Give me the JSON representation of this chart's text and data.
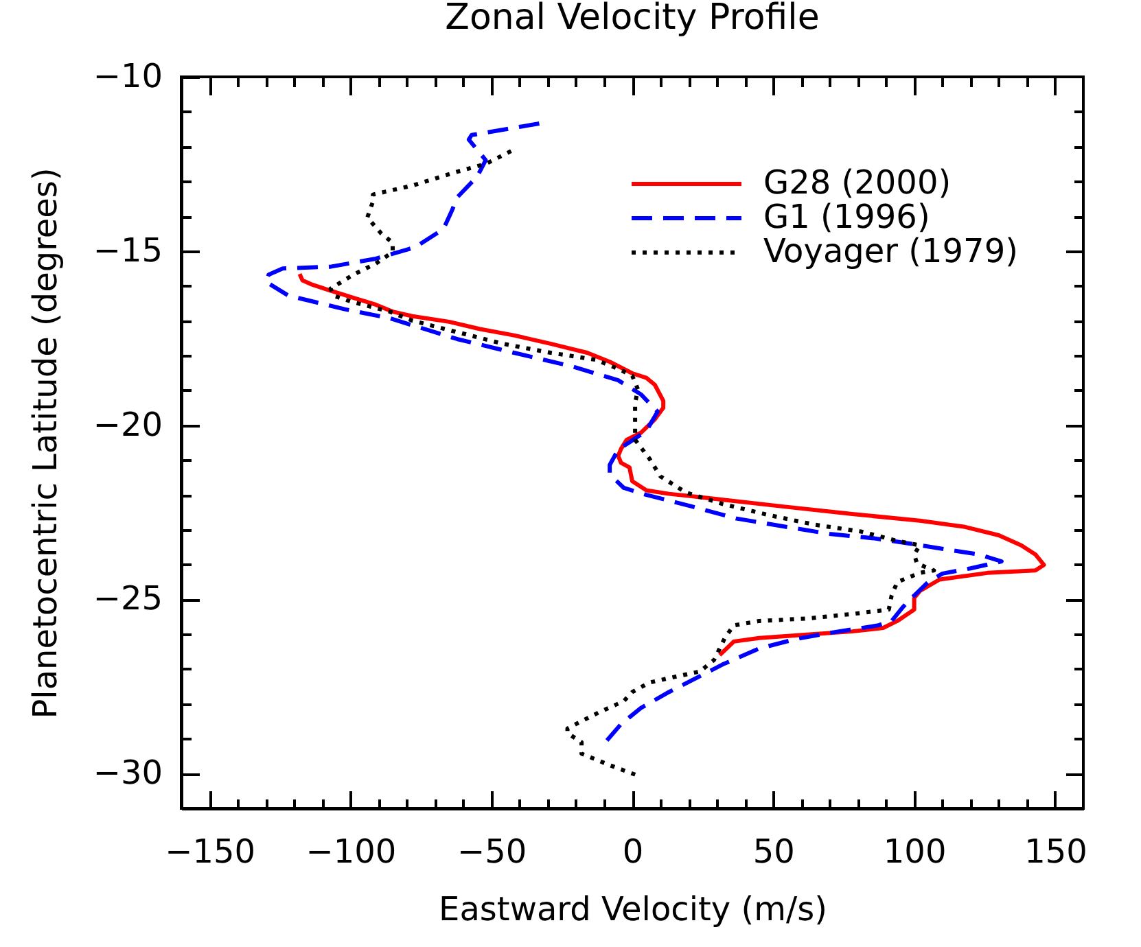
{
  "chart_data": {
    "type": "line",
    "title": "Zonal Velocity Profile",
    "xlabel": "Eastward Velocity (m/s)",
    "ylabel": "Planetocentric Latitude (degrees)",
    "xlim": [
      -160,
      160
    ],
    "xticks": [
      -150,
      {
        "value": -140,
        "label": null
      },
      {
        "value": -130,
        "label": null
      },
      {
        "value": -120,
        "label": null
      },
      {
        "value": -110,
        "label": null
      },
      -100,
      {
        "value": -90,
        "label": null
      },
      {
        "value": -80,
        "label": null
      },
      {
        "value": -70,
        "label": null
      },
      {
        "value": -60,
        "label": null
      },
      -50,
      {
        "value": -40,
        "label": null
      },
      {
        "value": -30,
        "label": null
      },
      {
        "value": -20,
        "label": null
      },
      {
        "value": -10,
        "label": null
      },
      0,
      {
        "value": 10,
        "label": null
      },
      {
        "value": 20,
        "label": null
      },
      {
        "value": 30,
        "label": null
      },
      {
        "value": 40,
        "label": null
      },
      50,
      {
        "value": 60,
        "label": null
      },
      {
        "value": 70,
        "label": null
      },
      {
        "value": 80,
        "label": null
      },
      {
        "value": 90,
        "label": null
      },
      100,
      {
        "value": 110,
        "label": null
      },
      {
        "value": 120,
        "label": null
      },
      {
        "value": 130,
        "label": null
      },
      {
        "value": 140,
        "label": null
      },
      150
    ],
    "ylim": [
      -31,
      -10
    ],
    "yticks": [
      -30,
      {
        "value": -29,
        "label": null
      },
      {
        "value": -28,
        "label": null
      },
      {
        "value": -27,
        "label": null
      },
      {
        "value": -26,
        "label": null
      },
      -25,
      {
        "value": -24,
        "label": null
      },
      {
        "value": -23,
        "label": null
      },
      {
        "value": -22,
        "label": null
      },
      {
        "value": -21,
        "label": null
      },
      -20,
      {
        "value": -19,
        "label": null
      },
      {
        "value": -18,
        "label": null
      },
      {
        "value": -17,
        "label": null
      },
      {
        "value": -16,
        "label": null
      },
      -15,
      {
        "value": -14,
        "label": null
      },
      {
        "value": -13,
        "label": null
      },
      {
        "value": -12,
        "label": null
      },
      {
        "value": -11,
        "label": null
      },
      -10
    ],
    "legend": "top right",
    "series": [
      {
        "name": "G28 (2000)",
        "color": "#ff0000",
        "line_style": "solid",
        "x": [
          -118,
          -117,
          -114,
          -107,
          -99,
          -91,
          -85,
          -78,
          -65,
          -54,
          -42,
          -29,
          -16,
          -8,
          0,
          5,
          8,
          11,
          11,
          8,
          3,
          -2,
          -4,
          -5,
          -4,
          -1,
          0,
          5,
          13,
          29,
          53,
          78,
          102,
          118,
          130,
          138,
          143,
          146,
          143,
          126,
          109,
          102,
          100,
          100,
          94,
          89,
          78,
          62,
          45,
          36,
          34,
          31
        ],
        "values": [
          -15.66,
          -15.84,
          -15.95,
          -16.14,
          -16.34,
          -16.54,
          -16.74,
          -16.87,
          -17.03,
          -17.24,
          -17.42,
          -17.66,
          -17.92,
          -18.18,
          -18.51,
          -18.64,
          -18.84,
          -19.3,
          -19.5,
          -19.83,
          -20.22,
          -20.42,
          -20.68,
          -20.88,
          -21.08,
          -21.21,
          -21.61,
          -21.87,
          -21.97,
          -22.11,
          -22.33,
          -22.55,
          -22.74,
          -22.92,
          -23.16,
          -23.45,
          -23.71,
          -24.01,
          -24.17,
          -24.24,
          -24.43,
          -24.76,
          -24.96,
          -25.29,
          -25.62,
          -25.82,
          -25.92,
          -26.01,
          -26.11,
          -26.21,
          -26.37,
          -26.6
        ]
      },
      {
        "name": "G1 (1996)",
        "color": "#0000ff",
        "line_style": "dashed",
        "x": [
          -33,
          -57,
          -58,
          -52,
          -55,
          -62,
          -64,
          -67,
          -77,
          -80,
          -91,
          -107,
          -124,
          -129,
          -130,
          -122,
          -102,
          -86,
          -62,
          -42,
          -21,
          -5,
          3,
          9,
          5,
          -1,
          -5,
          -8,
          -8,
          -3,
          5,
          21,
          37,
          57,
          70,
          86,
          97,
          110,
          123,
          131,
          120,
          110,
          105,
          100,
          96,
          92,
          87,
          71,
          58,
          45,
          32,
          21,
          13,
          3,
          -4,
          -9
        ],
        "values": [
          -11.34,
          -11.67,
          -11.8,
          -12.39,
          -12.86,
          -13.45,
          -13.84,
          -14.37,
          -14.89,
          -14.96,
          -15.22,
          -15.45,
          -15.5,
          -15.68,
          -15.88,
          -16.28,
          -16.67,
          -16.93,
          -17.53,
          -17.92,
          -18.32,
          -18.71,
          -19.11,
          -19.61,
          -20.16,
          -20.49,
          -20.7,
          -21.14,
          -21.41,
          -21.8,
          -22,
          -22.33,
          -22.68,
          -22.95,
          -23.12,
          -23.25,
          -23.38,
          -23.55,
          -23.71,
          -23.91,
          -24.11,
          -24.26,
          -24.5,
          -24.89,
          -25.22,
          -25.62,
          -25.75,
          -25.95,
          -26.14,
          -26.41,
          -26.87,
          -27.33,
          -27.66,
          -28.12,
          -28.58,
          -29.05
        ]
      },
      {
        "name": "Voyager (1979)",
        "color": "#000000",
        "line_style": "dotted",
        "x": [
          -43,
          -52,
          -62,
          -78,
          -92,
          -92,
          -94,
          -89,
          -85,
          -85,
          -91,
          -99,
          -107,
          -106,
          -99,
          -86,
          -78,
          -62,
          -46,
          -29,
          -13,
          -5,
          0,
          2,
          1,
          1,
          1,
          6,
          10,
          19,
          32,
          49,
          65,
          81,
          94,
          102,
          100,
          101,
          107,
          102,
          94,
          92,
          91,
          78,
          62,
          45,
          36,
          33,
          29,
          24,
          13,
          6,
          0,
          -3,
          -12,
          -20,
          -23,
          -23,
          -18,
          -18,
          -8,
          3
        ],
        "values": [
          -12.13,
          -12.5,
          -12.72,
          -13.12,
          -13.38,
          -13.58,
          -14.04,
          -14.5,
          -14.76,
          -15.03,
          -15.36,
          -15.68,
          -16.08,
          -16.28,
          -16.47,
          -16.74,
          -17,
          -17.33,
          -17.66,
          -17.92,
          -18.12,
          -18.38,
          -18.58,
          -18.97,
          -19.37,
          -19.89,
          -20.42,
          -20.95,
          -21.47,
          -21.93,
          -22.26,
          -22.59,
          -22.86,
          -23.05,
          -23.32,
          -23.45,
          -23.71,
          -23.97,
          -24.17,
          -24.24,
          -24.5,
          -24.89,
          -25.29,
          -25.42,
          -25.55,
          -25.62,
          -25.75,
          -26.08,
          -26.74,
          -27.07,
          -27.26,
          -27.39,
          -27.66,
          -27.92,
          -28.25,
          -28.58,
          -28.71,
          -28.84,
          -29.1,
          -29.43,
          -29.76,
          -30.09
        ]
      }
    ]
  }
}
